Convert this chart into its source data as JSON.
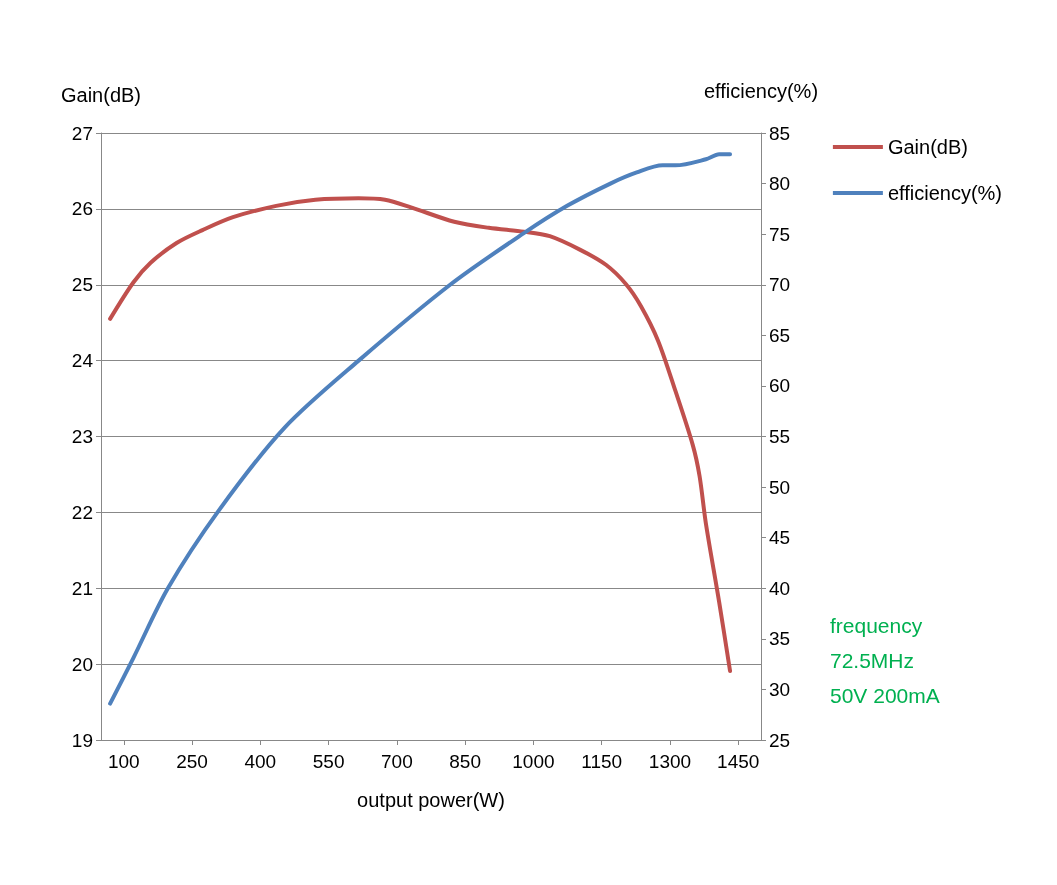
{
  "chart_data": {
    "type": "line",
    "xlabel": "output power(W)",
    "ylabel": "Gain(dB)",
    "y2label": "efficiency(%)",
    "xlim": [
      50,
      1500
    ],
    "xticks": [
      100,
      250,
      400,
      550,
      700,
      850,
      1000,
      1150,
      1300,
      1450
    ],
    "ylim": [
      19,
      27
    ],
    "yticks": [
      19,
      20,
      21,
      22,
      23,
      24,
      25,
      26,
      27
    ],
    "y2lim": [
      25,
      85
    ],
    "y2ticks": [
      25,
      30,
      35,
      40,
      45,
      50,
      55,
      60,
      65,
      70,
      75,
      80,
      85
    ],
    "grid": "y",
    "legend": "top right",
    "marker": "none",
    "line_style": "solid",
    "annotations": [
      "frequency",
      "72.5MHz",
      "50V 200mA"
    ],
    "series": [
      {
        "name": "Gain(dB)",
        "color": "#c0504d",
        "x": [
          70,
          121,
          159,
          216,
          273,
          340,
          435,
          521,
          616,
          674,
          731,
          826,
          902,
          979,
          1036,
          1103,
          1160,
          1203,
          1236,
          1274,
          1312,
          1350,
          1365,
          1379,
          1408,
          1432
        ],
        "values": [
          24.55,
          25.03,
          25.29,
          25.55,
          25.72,
          25.89,
          26.04,
          26.12,
          26.14,
          26.12,
          26.02,
          25.83,
          25.75,
          25.7,
          25.64,
          25.46,
          25.26,
          25.01,
          24.72,
          24.26,
          23.6,
          22.89,
          22.48,
          21.85,
          20.82,
          19.91
        ]
      },
      {
        "name": "efficiency(%)",
        "color": "#4f81bd",
        "axis": "y2",
        "x": [
          70,
          121,
          197,
          309,
          454,
          616,
          817,
          979,
          1074,
          1169,
          1227,
          1284,
          1312,
          1379,
          1408,
          1432
        ],
        "values": [
          28.6,
          33.1,
          40.0,
          47.7,
          55.9,
          62.5,
          70.0,
          75.1,
          77.8,
          80.0,
          81.1,
          81.8,
          81.8,
          82.4,
          82.9,
          82.9
        ]
      }
    ]
  }
}
